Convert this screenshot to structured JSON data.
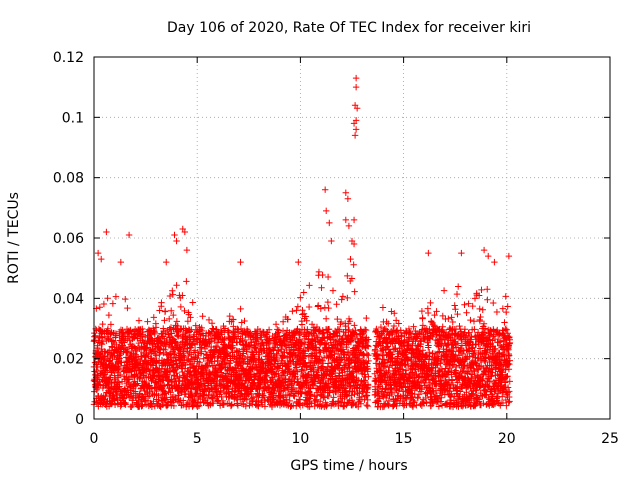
{
  "chart_data": {
    "type": "scatter",
    "title": "Day 106 of 2020, Rate Of TEC Index for receiver kiri",
    "xlabel": "GPS time / hours",
    "ylabel": "ROTI / TECUs",
    "xlim": [
      0,
      25
    ],
    "ylim": [
      0,
      0.12
    ],
    "xticks": [
      0,
      5,
      10,
      15,
      20,
      25
    ],
    "yticks": [
      0,
      0.02,
      0.04,
      0.06,
      0.08,
      0.1,
      0.12
    ],
    "xtick_labels": [
      "0",
      "5",
      "10",
      "15",
      "20",
      "25"
    ],
    "ytick_labels": [
      "0",
      "0.02",
      "0.04",
      "0.06",
      "0.08",
      "0.1",
      "0.12"
    ],
    "grid": true,
    "marker": "+",
    "color": "#ff0000",
    "series_extent": {
      "x_min": 0,
      "x_max": 20.15,
      "gap": [
        13.3,
        13.6
      ]
    },
    "bulk_band": {
      "y_min": 0.004,
      "y_max": 0.03
    },
    "notable_points": [
      {
        "x": 0.2,
        "y": 0.055
      },
      {
        "x": 0.35,
        "y": 0.053
      },
      {
        "x": 0.6,
        "y": 0.062
      },
      {
        "x": 1.7,
        "y": 0.061
      },
      {
        "x": 1.3,
        "y": 0.052
      },
      {
        "x": 3.5,
        "y": 0.052
      },
      {
        "x": 3.9,
        "y": 0.061
      },
      {
        "x": 4.0,
        "y": 0.059
      },
      {
        "x": 4.3,
        "y": 0.063
      },
      {
        "x": 4.4,
        "y": 0.062
      },
      {
        "x": 4.5,
        "y": 0.056
      },
      {
        "x": 7.1,
        "y": 0.052
      },
      {
        "x": 9.9,
        "y": 0.052
      },
      {
        "x": 11.2,
        "y": 0.076
      },
      {
        "x": 11.25,
        "y": 0.069
      },
      {
        "x": 11.4,
        "y": 0.065
      },
      {
        "x": 11.5,
        "y": 0.059
      },
      {
        "x": 12.2,
        "y": 0.075
      },
      {
        "x": 12.3,
        "y": 0.073
      },
      {
        "x": 12.2,
        "y": 0.066
      },
      {
        "x": 12.35,
        "y": 0.064
      },
      {
        "x": 12.5,
        "y": 0.059
      },
      {
        "x": 12.6,
        "y": 0.058
      },
      {
        "x": 12.7,
        "y": 0.113
      },
      {
        "x": 12.7,
        "y": 0.11
      },
      {
        "x": 12.65,
        "y": 0.104
      },
      {
        "x": 12.75,
        "y": 0.103
      },
      {
        "x": 12.6,
        "y": 0.098
      },
      {
        "x": 12.7,
        "y": 0.099
      },
      {
        "x": 12.65,
        "y": 0.094
      },
      {
        "x": 12.7,
        "y": 0.096
      },
      {
        "x": 12.6,
        "y": 0.066
      },
      {
        "x": 16.2,
        "y": 0.055
      },
      {
        "x": 17.8,
        "y": 0.055
      },
      {
        "x": 18.9,
        "y": 0.056
      },
      {
        "x": 19.1,
        "y": 0.054
      },
      {
        "x": 20.1,
        "y": 0.054
      },
      {
        "x": 19.4,
        "y": 0.052
      }
    ],
    "envelope": [
      [
        0.0,
        0.04
      ],
      [
        0.5,
        0.045
      ],
      [
        1.0,
        0.042
      ],
      [
        1.5,
        0.043
      ],
      [
        2.0,
        0.036
      ],
      [
        2.5,
        0.035
      ],
      [
        3.0,
        0.038
      ],
      [
        3.5,
        0.04
      ],
      [
        4.0,
        0.047
      ],
      [
        4.5,
        0.046
      ],
      [
        5.0,
        0.04
      ],
      [
        5.5,
        0.036
      ],
      [
        6.0,
        0.033
      ],
      [
        6.5,
        0.034
      ],
      [
        7.0,
        0.04
      ],
      [
        7.5,
        0.03
      ],
      [
        8.0,
        0.028
      ],
      [
        8.5,
        0.03
      ],
      [
        9.0,
        0.034
      ],
      [
        9.5,
        0.036
      ],
      [
        10.0,
        0.041
      ],
      [
        10.5,
        0.045
      ],
      [
        11.0,
        0.05
      ],
      [
        11.5,
        0.048
      ],
      [
        12.0,
        0.052
      ],
      [
        12.5,
        0.055
      ],
      [
        13.0,
        0.04
      ],
      [
        13.6,
        0.046
      ],
      [
        14.0,
        0.04
      ],
      [
        14.5,
        0.036
      ],
      [
        15.0,
        0.03
      ],
      [
        15.5,
        0.032
      ],
      [
        16.0,
        0.038
      ],
      [
        16.5,
        0.04
      ],
      [
        17.0,
        0.043
      ],
      [
        17.5,
        0.046
      ],
      [
        18.0,
        0.041
      ],
      [
        18.5,
        0.043
      ],
      [
        19.0,
        0.047
      ],
      [
        19.5,
        0.043
      ],
      [
        20.15,
        0.04
      ]
    ]
  }
}
